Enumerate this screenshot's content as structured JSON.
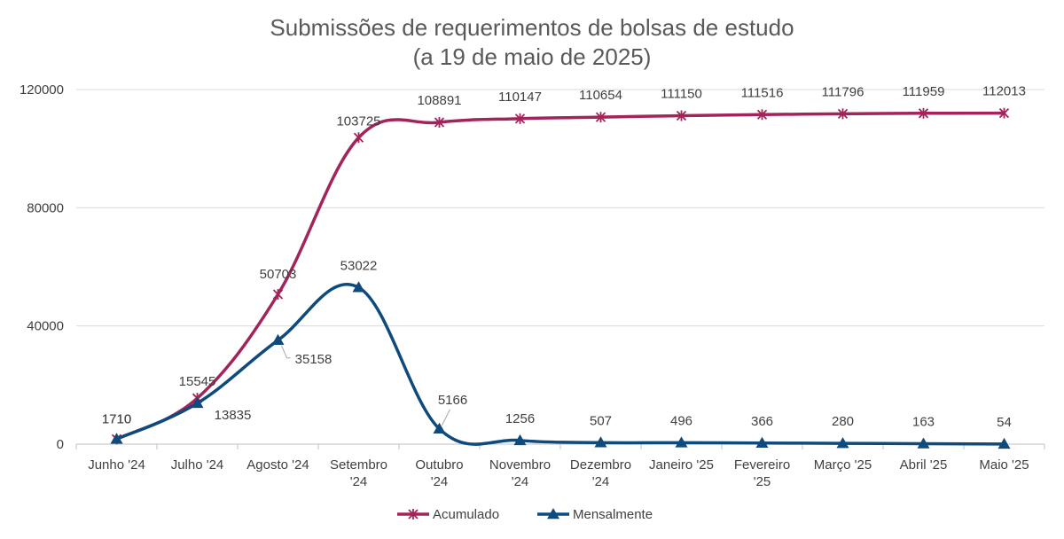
{
  "chart_data": {
    "type": "line",
    "title": "Submissões de requerimentos de bolsas de estudo",
    "subtitle": "(a 19 de maio de 2025)",
    "xlabel": "",
    "ylabel": "",
    "ylim": [
      0,
      120000
    ],
    "yticks": [
      "0",
      "40000",
      "80000",
      "120000"
    ],
    "grid": true,
    "legend_position": "bottom",
    "categories": [
      [
        "Junho '24"
      ],
      [
        "Julho '24"
      ],
      [
        "Agosto '24"
      ],
      [
        "Setembro",
        "'24"
      ],
      [
        "Outubro",
        "'24"
      ],
      [
        "Novembro",
        "'24"
      ],
      [
        "Dezembro",
        "'24"
      ],
      [
        "Janeiro '25"
      ],
      [
        "Fevereiro",
        "'25"
      ],
      [
        "Março '25"
      ],
      [
        "Abril '25"
      ],
      [
        "Maio '25"
      ]
    ],
    "series": [
      {
        "name": "Acumulado",
        "color": "#A3245B",
        "marker": "asterisk",
        "values": [
          1710,
          15545,
          50703,
          103725,
          108891,
          110147,
          110654,
          111150,
          111516,
          111796,
          111959,
          112013
        ]
      },
      {
        "name": "Mensalmente",
        "color": "#0F4A7C",
        "marker": "triangle",
        "values": [
          1710,
          13835,
          35158,
          53022,
          5166,
          1256,
          507,
          496,
          366,
          280,
          163,
          54
        ]
      }
    ]
  }
}
